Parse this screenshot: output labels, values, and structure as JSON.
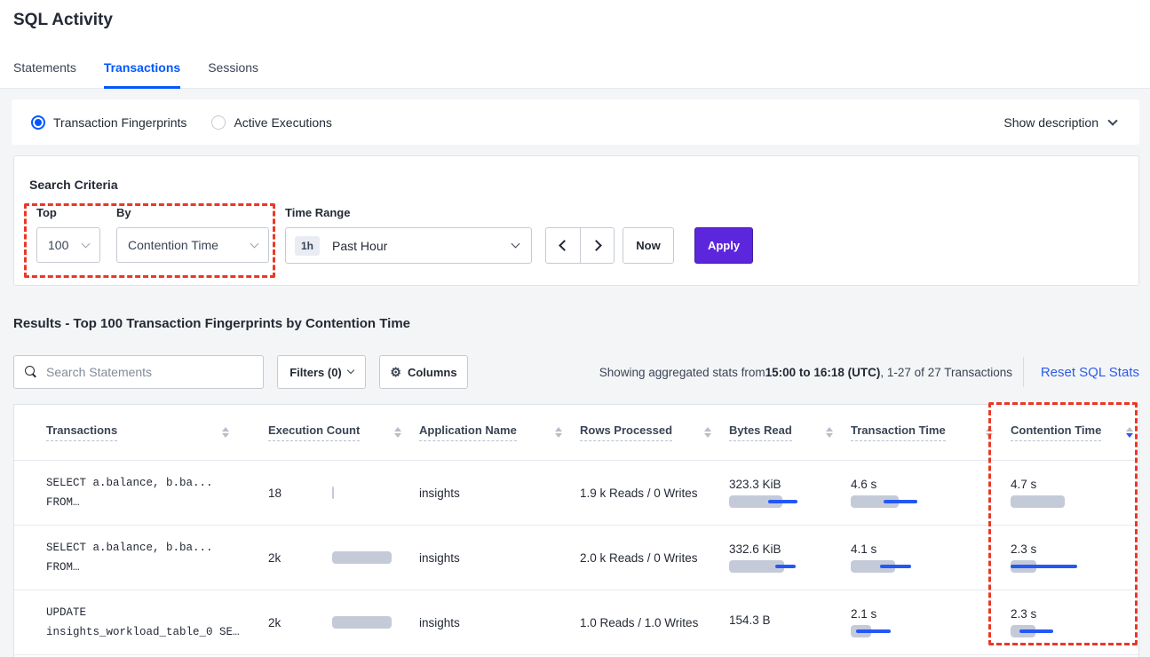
{
  "page": {
    "title": "SQL Activity"
  },
  "tabs": [
    {
      "label": "Statements",
      "active": false
    },
    {
      "label": "Transactions",
      "active": true
    },
    {
      "label": "Sessions",
      "active": false
    }
  ],
  "view_toggle": {
    "options": [
      {
        "label": "Transaction Fingerprints",
        "selected": true
      },
      {
        "label": "Active Executions",
        "selected": false
      }
    ],
    "show_description_label": "Show description"
  },
  "search_criteria": {
    "heading": "Search Criteria",
    "top": {
      "label": "Top",
      "value": "100"
    },
    "by": {
      "label": "By",
      "value": "Contention Time"
    },
    "time_range": {
      "label": "Time Range",
      "badge": "1h",
      "value": "Past Hour"
    },
    "now_label": "Now",
    "apply_label": "Apply"
  },
  "results": {
    "heading": "Results - Top 100 Transaction Fingerprints by Contention Time",
    "search_placeholder": "Search Statements",
    "filters_label": "Filters (0)",
    "columns_label": "Columns",
    "stats_prefix": "Showing aggregated stats from ",
    "stats_range": "15:00 to 16:18 (UTC)",
    "stats_suffix": ", 1-27 of 27 Transactions",
    "reset_label": "Reset SQL Stats"
  },
  "table": {
    "headers": [
      "Transactions",
      "Execution Count",
      "Application Name",
      "Rows Processed",
      "Bytes Read",
      "Transaction Time",
      "Contention Time"
    ],
    "sort": {
      "column": "Contention Time",
      "direction": "desc"
    },
    "rows": [
      {
        "transaction_line1": "SELECT a.balance, b.ba...",
        "transaction_line2": "FROM…",
        "execution_count": "18",
        "application_name": "insights",
        "rows_processed": "1.9 k Reads / 0 Writes",
        "bytes_read": "323.3 KiB",
        "transaction_time": "4.6 s",
        "contention_time": "4.7 s",
        "bars": {
          "execution_count": {
            "bar": 2
          },
          "bytes_read": {
            "bar": 60,
            "line": [
              44,
              77
            ]
          },
          "transaction_time": {
            "bar": 54,
            "line": [
              37,
              75
            ]
          },
          "contention_time": {
            "bar": 61
          }
        }
      },
      {
        "transaction_line1": "SELECT a.balance, b.ba...",
        "transaction_line2": "FROM…",
        "execution_count": "2k",
        "application_name": "insights",
        "rows_processed": "2.0 k Reads / 0 Writes",
        "bytes_read": "332.6 KiB",
        "transaction_time": "4.1 s",
        "contention_time": "2.3 s",
        "bars": {
          "execution_count": {
            "bar": 67
          },
          "bytes_read": {
            "bar": 62,
            "line": [
              52,
              75
            ]
          },
          "transaction_time": {
            "bar": 50,
            "line": [
              33,
              68
            ]
          },
          "contention_time": {
            "bar": 29,
            "line": [
              0,
              75
            ]
          }
        }
      },
      {
        "transaction_line1": "UPDATE",
        "transaction_line2": "insights_workload_table_0 SE…",
        "execution_count": "2k",
        "application_name": "insights",
        "rows_processed": "1.0 Reads / 1.0 Writes",
        "bytes_read": "154.3 B",
        "transaction_time": "2.1 s",
        "contention_time": "2.3 s",
        "bars": {
          "execution_count": {
            "bar": 67
          },
          "transaction_time": {
            "bar": 23,
            "line": [
              6,
              45
            ]
          },
          "contention_time": {
            "bar": 28,
            "line": [
              10,
              48
            ]
          }
        }
      }
    ]
  },
  "annotations": [
    {
      "target": "top-by-controls",
      "style": "red-dashed-box"
    },
    {
      "target": "contention-time-column",
      "style": "red-dashed-box"
    }
  ],
  "icons": {
    "search": "magnifier",
    "columns": "gear ⚙",
    "sort": "up-down-triangles",
    "dropdowns": "chevron-down",
    "time_nav": "chevron-left / chevron-right"
  },
  "colors": {
    "accent_blue": "#0257ff",
    "link_blue": "#2a5ce8",
    "bar_gray": "#c4cad8",
    "bar_blue": "#2458f5",
    "apply_purple": "#5c26dc",
    "annotation_red": "#ea3826",
    "page_background": "#f4f5f7"
  }
}
